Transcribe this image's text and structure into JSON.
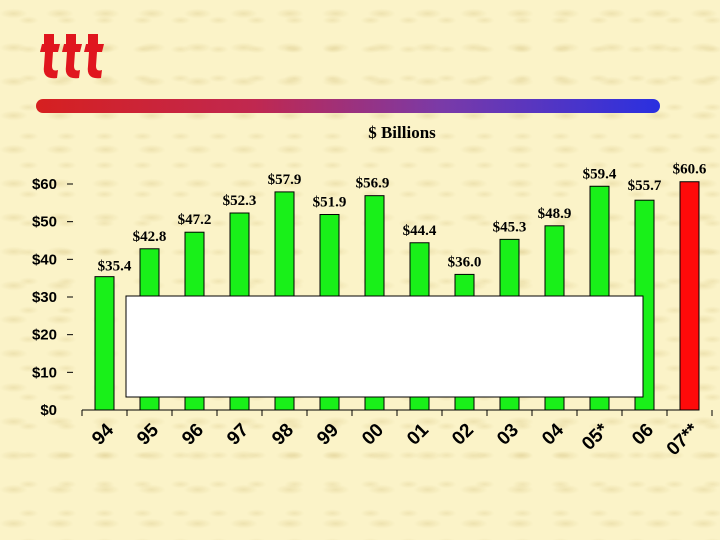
{
  "colors": {
    "bar": "#19f019",
    "highlight": "#ff0a0a",
    "logo": "#e0161e",
    "background": "#fbf3c8"
  },
  "logo": {
    "name": "ttt-logo"
  },
  "chart_data": {
    "type": "bar",
    "title": "$ Billions",
    "xlabel": "",
    "ylabel": "",
    "categories": [
      "94",
      "95",
      "96",
      "97",
      "98",
      "99",
      "00",
      "01",
      "02",
      "03",
      "04",
      "05*",
      "06",
      "07**"
    ],
    "values": [
      35.4,
      42.8,
      47.2,
      52.3,
      57.9,
      51.9,
      56.9,
      44.4,
      36.0,
      45.3,
      48.9,
      59.4,
      55.7,
      60.6
    ],
    "data_labels": [
      "$35.4",
      "$42.8",
      "$47.2",
      "$52.3",
      "$57.9",
      "$51.9",
      "$56.9",
      "$44.4",
      "$36.0",
      "$45.3",
      "$48.9",
      "$59.4",
      "$55.7",
      "$60.6"
    ],
    "highlight_index": 13,
    "ylim": [
      0,
      60
    ],
    "yticks": [
      0,
      10,
      20,
      30,
      40,
      50,
      60
    ],
    "ytick_labels": [
      "$0",
      "$10",
      "$20",
      "$30",
      "$40",
      "$50",
      "$60"
    ],
    "grid": false,
    "legend": "none",
    "overlay_box": "blank white panel covering lower portion of bars"
  }
}
